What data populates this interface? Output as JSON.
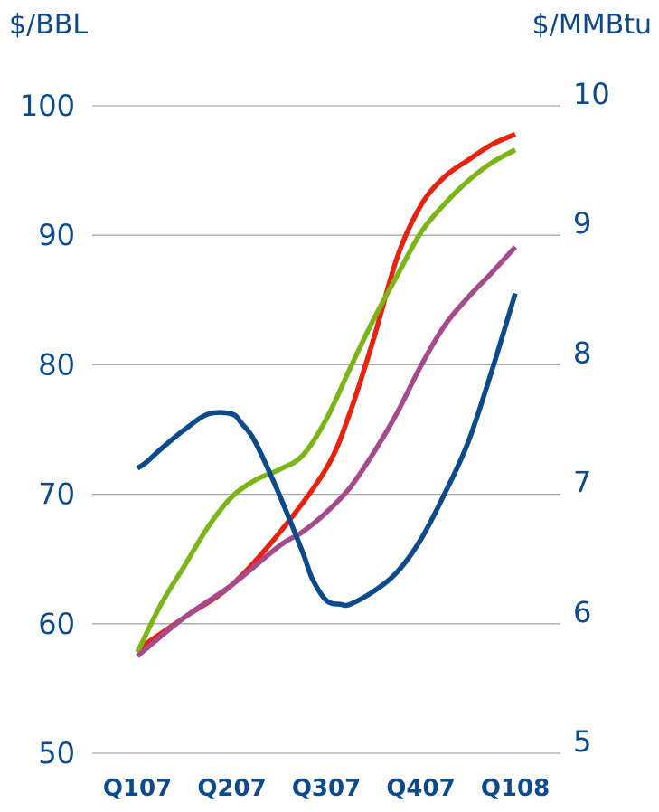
{
  "chart_data": {
    "type": "line",
    "left_axis_label": "$/BBL",
    "right_axis_label": "$/MMBtu",
    "left_axis": {
      "ylim": [
        50,
        100
      ],
      "ticks": [
        "50",
        "60",
        "70",
        "80",
        "90",
        "100"
      ]
    },
    "right_axis": {
      "ylim": [
        5,
        10
      ],
      "ticks": [
        "5",
        "6",
        "7",
        "8",
        "9",
        "10"
      ]
    },
    "categories": [
      "Q107",
      "Q207",
      "Q307",
      "Q407",
      "Q108"
    ],
    "grid": true,
    "legend": "none",
    "series": [
      {
        "color": "#e8220f",
        "axis": "left",
        "x": [
          0,
          0.5,
          1,
          1.5,
          2,
          2.25,
          2.5,
          2.75,
          3,
          3.25,
          3.5,
          3.75,
          4
        ],
        "values": [
          58,
          60.5,
          63,
          67,
          72,
          76.3,
          82,
          88.3,
          92.3,
          94.5,
          95.8,
          97,
          97.8
        ]
      },
      {
        "color": "#7cb518",
        "axis": "left",
        "x": [
          0,
          0.25,
          0.5,
          0.75,
          1,
          1.25,
          1.5,
          1.75,
          2,
          2.25,
          2.5,
          2.75,
          3,
          3.25,
          3.5,
          3.75,
          4
        ],
        "values": [
          57.8,
          61.5,
          64.5,
          67.5,
          69.8,
          71.1,
          71.9,
          73,
          75.8,
          79.7,
          83.5,
          86.9,
          90.2,
          92.4,
          94.2,
          95.6,
          96.6
        ]
      },
      {
        "color": "#a64a8e",
        "axis": "left",
        "x": [
          0,
          0.5,
          1,
          1.5,
          1.75,
          2,
          2.25,
          2.5,
          2.75,
          3,
          3.25,
          3.5,
          3.75,
          4
        ],
        "values": [
          57.5,
          60.5,
          63,
          66,
          67.1,
          68.6,
          70.5,
          73.2,
          76.3,
          79.9,
          83,
          85.2,
          87.1,
          89.1
        ]
      },
      {
        "color": "#0c4a8c",
        "axis": "right",
        "x": [
          0,
          0.1,
          0.25,
          0.5,
          0.75,
          1,
          1.1,
          1.25,
          1.5,
          1.75,
          1.85,
          2,
          2.15,
          2.25,
          2.5,
          2.75,
          3,
          3.25,
          3.5,
          3.75,
          4
        ],
        "values": [
          7.2,
          7.25,
          7.35,
          7.5,
          7.62,
          7.62,
          7.55,
          7.4,
          7,
          6.55,
          6.35,
          6.18,
          6.15,
          6.15,
          6.25,
          6.4,
          6.65,
          7,
          7.4,
          7.95,
          8.55
        ]
      }
    ]
  }
}
